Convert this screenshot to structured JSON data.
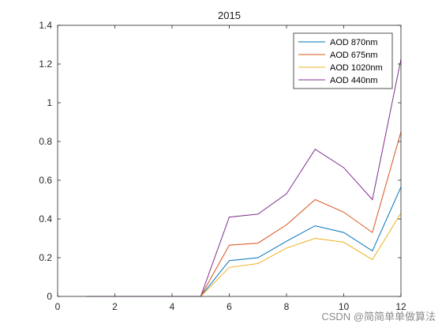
{
  "chart_data": {
    "type": "line",
    "title": "2015",
    "xlabel": "",
    "ylabel": "",
    "xlim": [
      0,
      12
    ],
    "ylim": [
      0,
      1.4
    ],
    "x_ticks": [
      "0",
      "2",
      "4",
      "6",
      "8",
      "10",
      "12"
    ],
    "y_ticks": [
      "0",
      "0.2",
      "0.4",
      "0.6",
      "0.8",
      "1",
      "1.2",
      "1.4"
    ],
    "grid": false,
    "legend_position": "top-right",
    "x": [
      1,
      2,
      3,
      4,
      5,
      6,
      7,
      8,
      9,
      10,
      11,
      12
    ],
    "series": [
      {
        "name": "AOD 870nm",
        "color": "#0072bd",
        "values": [
          0,
          0,
          0,
          0,
          0,
          0.185,
          0.2,
          0.285,
          0.365,
          0.33,
          0.235,
          0.565
        ]
      },
      {
        "name": "AOD 675nm",
        "color": "#d95319",
        "values": [
          0,
          0,
          0,
          0,
          0,
          0.265,
          0.275,
          0.37,
          0.5,
          0.435,
          0.33,
          0.85
        ]
      },
      {
        "name": "AOD 1020nm",
        "color": "#edb120",
        "values": [
          0,
          0,
          0,
          0,
          0,
          0.15,
          0.17,
          0.25,
          0.3,
          0.28,
          0.19,
          0.43
        ]
      },
      {
        "name": "AOD 440nm",
        "color": "#7e2f8e",
        "values": [
          0,
          0,
          0,
          0,
          0,
          0.41,
          0.425,
          0.53,
          0.76,
          0.665,
          0.5,
          1.225
        ]
      }
    ]
  },
  "watermark": "CSDN @简简单单做算法"
}
